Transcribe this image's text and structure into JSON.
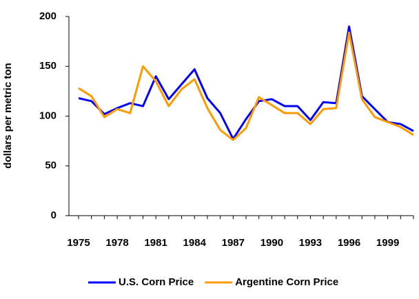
{
  "chart_data": {
    "type": "line",
    "y_label": "dollars per metric ton",
    "x": [
      1975,
      1976,
      1977,
      1978,
      1979,
      1980,
      1981,
      1982,
      1983,
      1984,
      1985,
      1986,
      1987,
      1988,
      1989,
      1990,
      1991,
      1992,
      1993,
      1994,
      1995,
      1996,
      1997,
      1998,
      1999,
      2000,
      2001
    ],
    "series": [
      {
        "name": "U.S. Corn Price",
        "color": "#0000ff",
        "values": [
          118,
          115,
          102,
          108,
          113,
          110,
          140,
          117,
          132,
          147,
          118,
          103,
          77,
          97,
          115,
          117,
          110,
          110,
          96,
          114,
          113,
          190,
          120,
          107,
          94,
          92,
          85
        ]
      },
      {
        "name": "Argentine Corn Price",
        "color": "#ff9900",
        "values": [
          128,
          120,
          99,
          107,
          103,
          150,
          135,
          110,
          127,
          137,
          108,
          86,
          76,
          88,
          119,
          111,
          103,
          103,
          92,
          107,
          108,
          184,
          117,
          99,
          94,
          89,
          81
        ]
      }
    ],
    "xlim": [
      1974.25,
      2001
    ],
    "xticks": [
      1975,
      1978,
      1981,
      1984,
      1987,
      1990,
      1993,
      1996,
      1999
    ],
    "ylim": [
      0,
      200
    ],
    "yticks": [
      0,
      50,
      100,
      150,
      200
    ],
    "grid": false,
    "legend": "bottom"
  }
}
